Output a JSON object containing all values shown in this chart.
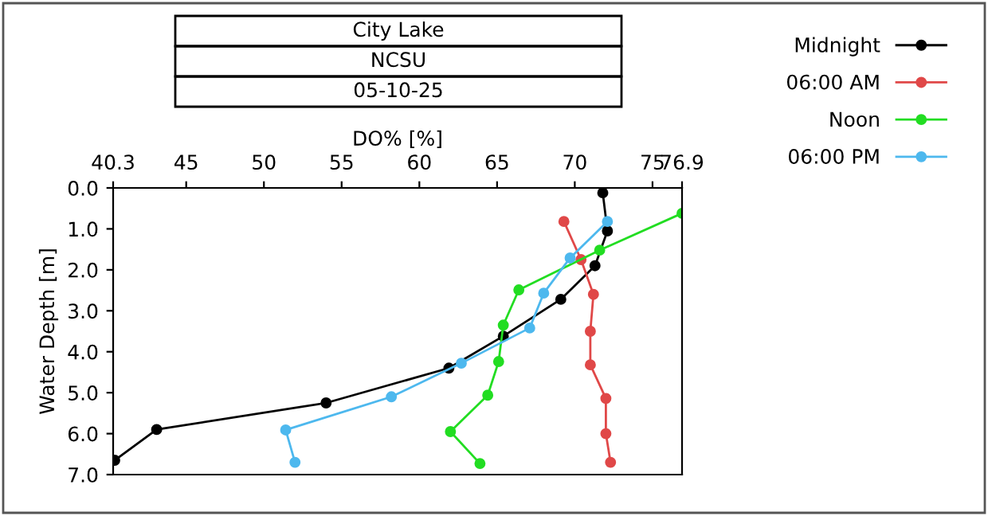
{
  "chart_data": {
    "type": "line",
    "title": "City Lake",
    "subtitle": [
      "NCSU",
      "05-10-25"
    ],
    "xlabel": "DO% [%]",
    "ylabel": "Water Depth [m]",
    "xlim": [
      40.3,
      76.9
    ],
    "xticks": [
      40.3,
      45,
      50,
      55,
      60,
      65,
      70,
      75,
      76.9
    ],
    "ylim": [
      7.0,
      0.0
    ],
    "yticks": [
      {
        "value": 0,
        "label": "0.0"
      },
      {
        "value": 1,
        "label": "1.0"
      },
      {
        "value": 2,
        "label": "2.0"
      },
      {
        "value": 3,
        "label": "3.0"
      },
      {
        "value": 4,
        "label": "4.0"
      },
      {
        "value": 5,
        "label": "5.0"
      },
      {
        "value": 6,
        "label": "6.0"
      },
      {
        "value": 7,
        "label": "7.0"
      }
    ],
    "marker": "circle",
    "line_style": "solid",
    "legend": "top right",
    "grid": false,
    "series": [
      {
        "name": "Midnight",
        "color": "#000000",
        "x": [
          71.8,
          72.1,
          71.3,
          69.1,
          65.4,
          61.9,
          54.0,
          43.1,
          40.4
        ],
        "values": [
          0.12,
          1.05,
          1.9,
          2.72,
          3.62,
          4.4,
          5.25,
          5.9,
          6.65
        ]
      },
      {
        "name": "06:00 AM",
        "color": "#e04848",
        "x": [
          69.3,
          70.4,
          71.2,
          71.0,
          71.0,
          72.0,
          72.0,
          72.3
        ],
        "values": [
          0.82,
          1.75,
          2.6,
          3.5,
          4.32,
          5.14,
          6.0,
          6.7
        ]
      },
      {
        "name": "Noon",
        "color": "#22dd22",
        "x": [
          76.9,
          71.6,
          66.4,
          65.4,
          65.1,
          64.4,
          62.0,
          63.9
        ],
        "values": [
          0.62,
          1.52,
          2.49,
          3.35,
          4.24,
          5.06,
          5.95,
          6.73
        ]
      },
      {
        "name": "06:00 PM",
        "color": "#4db8ee",
        "x": [
          72.1,
          69.7,
          68.0,
          67.1,
          62.7,
          58.2,
          51.4,
          52.0
        ],
        "values": [
          0.82,
          1.71,
          2.57,
          3.42,
          4.28,
          5.1,
          5.91,
          6.7
        ]
      }
    ]
  }
}
